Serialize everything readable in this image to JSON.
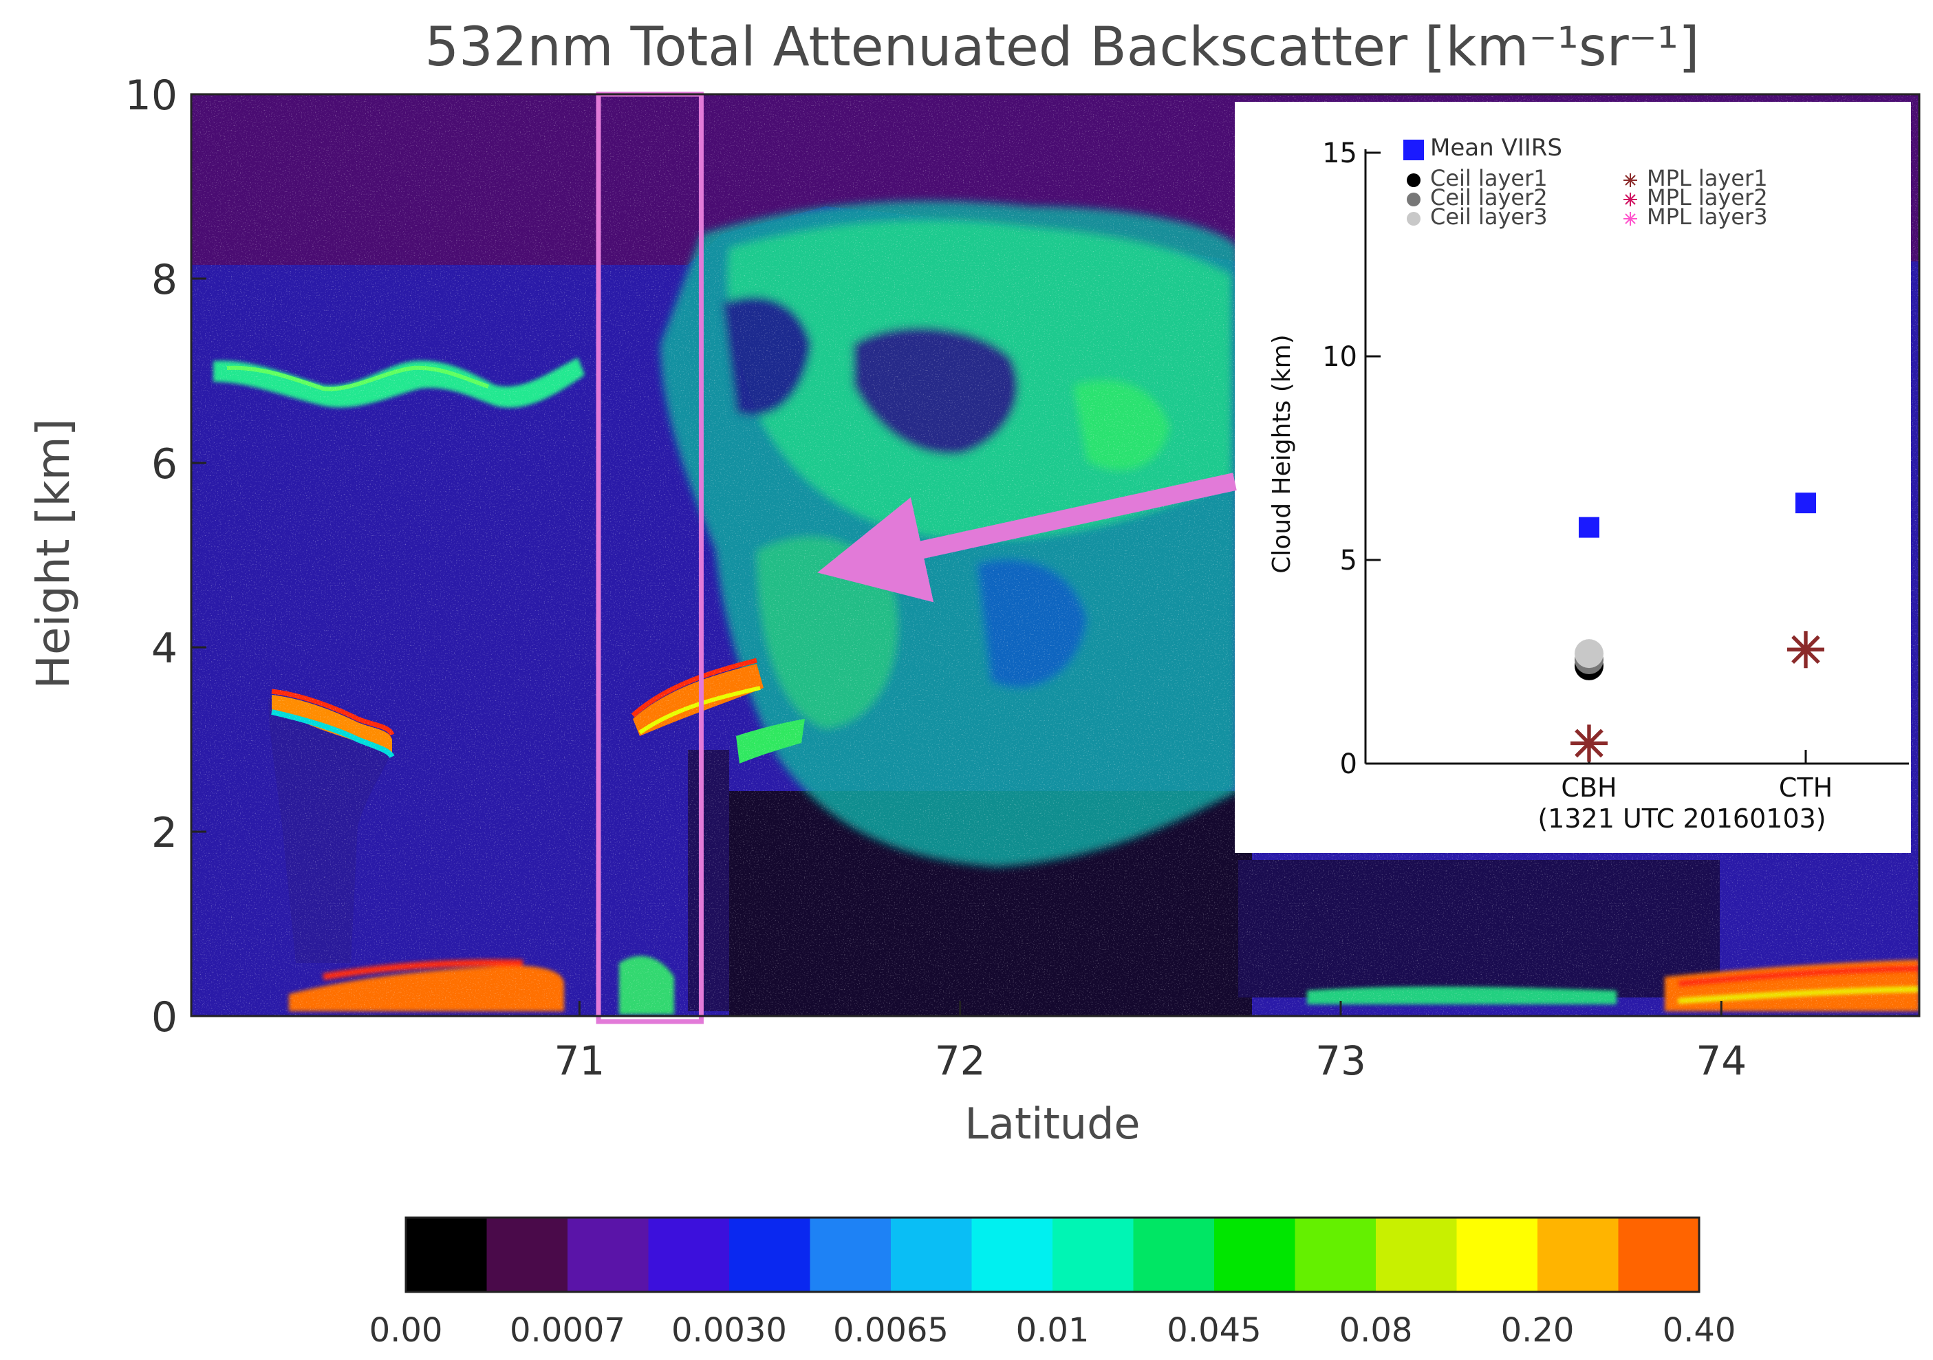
{
  "chart_data": [
    {
      "type": "heatmap",
      "title": "532nm Total Attenuated Backscatter [km⁻¹sr⁻¹]",
      "xlabel": "Latitude",
      "ylabel": "Height [km]",
      "x_ticks": [
        "71",
        "72",
        "73",
        "74"
      ],
      "x_tick_values": [
        71,
        72,
        73,
        74
      ],
      "y_ticks": [
        "0",
        "2",
        "4",
        "6",
        "8",
        "10"
      ],
      "y_tick_values": [
        0,
        2,
        4,
        6,
        8,
        10
      ],
      "xlim": [
        69.98,
        74.52
      ],
      "ylim": [
        0,
        10
      ],
      "highlight_box": {
        "lat_range": [
          71.05,
          71.32
        ],
        "height_range": [
          0,
          10
        ],
        "color": "#e27ad8"
      },
      "arrow": {
        "points_to": {
          "lat": 71.6,
          "height": 4.8
        },
        "color": "#e27ad8"
      },
      "colorbar": {
        "tick_labels": [
          "0.00",
          "0.0007",
          "0.0030",
          "0.0065",
          "0.01",
          "0.045",
          "0.08",
          "0.20",
          "0.40"
        ],
        "colors": [
          "#000000",
          "#4a0a4a",
          "#5a14a8",
          "#3c10dc",
          "#0a28f0",
          "#1e82f5",
          "#0abef5",
          "#00f0f0",
          "#00f5b4",
          "#00e664",
          "#00e600",
          "#64f000",
          "#c8f000",
          "#ffff00",
          "#ffb400",
          "#ff6400"
        ]
      }
    },
    {
      "type": "scatter",
      "ylabel": "Cloud Heights (km)",
      "categories": [
        "CBH",
        "CTH"
      ],
      "xlabel_note": "(1321 UTC 20160103)",
      "ylim": [
        0,
        15
      ],
      "y_ticks": [
        "0",
        "5",
        "10",
        "15"
      ],
      "y_tick_values": [
        0,
        5,
        10,
        15
      ],
      "legend": [
        "Mean VIIRS",
        "Ceil layer1",
        "Ceil layer2",
        "Ceil layer3",
        "MPL layer1",
        "MPL layer2",
        "MPL layer3"
      ],
      "series": [
        {
          "name": "Mean VIIRS",
          "color": "#1a1aff",
          "marker": "square",
          "points": [
            {
              "x": "CBH",
              "y": 5.8
            },
            {
              "x": "CTH",
              "y": 6.4
            }
          ]
        },
        {
          "name": "Ceil layer1",
          "color": "#000000",
          "marker": "circle",
          "points": [
            {
              "x": "CBH",
              "y": 2.4
            }
          ]
        },
        {
          "name": "Ceil layer2",
          "color": "#777777",
          "marker": "circle",
          "points": [
            {
              "x": "CBH",
              "y": 2.55
            }
          ]
        },
        {
          "name": "Ceil layer3",
          "color": "#c8c8c8",
          "marker": "circle",
          "points": [
            {
              "x": "CBH",
              "y": 2.7
            }
          ]
        },
        {
          "name": "MPL layer1",
          "color": "#8b2a2a",
          "marker": "asterisk",
          "points": [
            {
              "x": "CBH",
              "y": 0.5
            },
            {
              "x": "CTH",
              "y": 2.8
            }
          ]
        },
        {
          "name": "MPL layer2",
          "color": "#d01060",
          "marker": "asterisk",
          "points": []
        },
        {
          "name": "MPL layer3",
          "color": "#ff55cc",
          "marker": "asterisk",
          "points": []
        }
      ]
    }
  ]
}
